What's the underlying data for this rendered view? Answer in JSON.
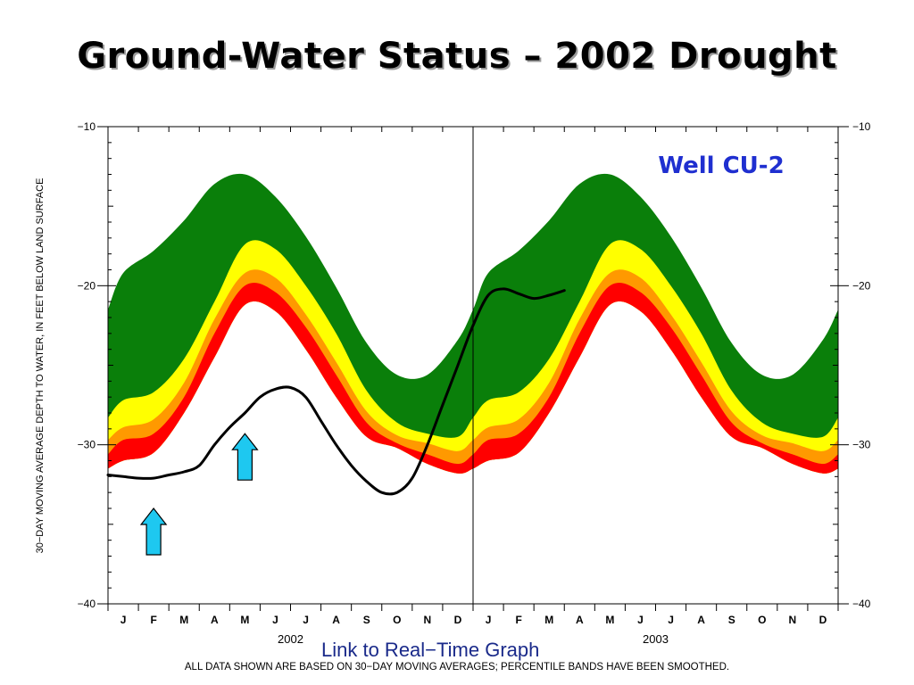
{
  "slide": {
    "title": "Ground-Water Status – 2002 Drought",
    "link_text": "Link to Real−Time Graph",
    "footnote": "ALL DATA SHOWN ARE BASED ON 30−DAY MOVING AVERAGES;  PERCENTILE BANDS HAVE BEEN SMOOTHED."
  },
  "colors": {
    "green": "#0a7f0a",
    "yellow": "#ffff00",
    "orange": "#ff9900",
    "red": "#ff0000",
    "line": "#000000",
    "arrow": "#1ec8f0",
    "well_label": "#1f2fd0"
  },
  "icons": [
    "up-arrow-icon",
    "up-arrow-icon"
  ],
  "chart_data": {
    "type": "area",
    "well_label": "Well CU-2",
    "ylabel": "30−DAY MOVING AVERAGE DEPTH TO WATER, IN FEET BELOW LAND SURFACE",
    "ylim": [
      -40,
      -10
    ],
    "yticks": [
      -10,
      -20,
      -30,
      -40
    ],
    "xlim": [
      0,
      24
    ],
    "months": [
      "J",
      "F",
      "M",
      "A",
      "M",
      "J",
      "J",
      "A",
      "S",
      "O",
      "N",
      "D",
      "J",
      "F",
      "M",
      "A",
      "M",
      "J",
      "J",
      "A",
      "S",
      "O",
      "N",
      "D"
    ],
    "years": [
      "2002",
      "2003"
    ],
    "band_x": [
      0,
      0.5,
      1.5,
      2.5,
      3.5,
      4.5,
      5.5,
      6.5,
      7.5,
      8.5,
      9.5,
      10.5,
      11.5,
      12,
      12.5,
      13.5,
      14.5,
      15.5,
      16.5,
      17.5,
      18.5,
      19.5,
      20.5,
      21.5,
      22.5,
      23.5,
      24
    ],
    "bands": [
      {
        "name": "green",
        "top": [
          -21.5,
          -19.2,
          -17.8,
          -15.9,
          -13.6,
          -13.0,
          -14.4,
          -16.9,
          -20.1,
          -23.6,
          -25.6,
          -25.6,
          -23.4,
          -21.5,
          -19.2,
          -17.8,
          -15.9,
          -13.6,
          -13.0,
          -14.4,
          -16.9,
          -20.1,
          -23.6,
          -25.6,
          -25.6,
          -23.4,
          -21.5
        ]
      },
      {
        "name": "yellow",
        "top": [
          -28.3,
          -27.2,
          -26.7,
          -24.6,
          -21.0,
          -17.4,
          -17.7,
          -20.0,
          -23.0,
          -26.6,
          -28.6,
          -29.3,
          -29.5,
          -28.3,
          -27.2,
          -26.7,
          -24.6,
          -21.0,
          -17.4,
          -17.7,
          -20.0,
          -23.0,
          -26.6,
          -28.6,
          -29.3,
          -29.5,
          -28.3
        ]
      },
      {
        "name": "orange",
        "top": [
          -29.7,
          -28.9,
          -28.4,
          -26.1,
          -22.1,
          -19.2,
          -19.5,
          -21.8,
          -24.8,
          -27.9,
          -29.4,
          -29.9,
          -30.4,
          -29.7,
          -28.9,
          -28.4,
          -26.1,
          -22.1,
          -19.2,
          -19.5,
          -21.8,
          -24.8,
          -27.9,
          -29.4,
          -29.9,
          -30.4,
          -29.7
        ]
      },
      {
        "name": "red",
        "top": [
          -30.6,
          -29.7,
          -29.3,
          -27.0,
          -23.0,
          -20.0,
          -20.4,
          -22.6,
          -25.6,
          -28.6,
          -29.9,
          -30.6,
          -31.2,
          -30.6,
          -29.7,
          -29.3,
          -27.0,
          -23.0,
          -20.0,
          -20.4,
          -22.6,
          -25.6,
          -28.6,
          -29.9,
          -30.6,
          -31.2,
          -30.6
        ],
        "bottom": [
          -31.5,
          -31.0,
          -30.5,
          -28.0,
          -24.5,
          -21.2,
          -21.6,
          -24.0,
          -27.0,
          -29.5,
          -30.2,
          -31.2,
          -31.8,
          -31.5,
          -31.0,
          -30.5,
          -28.0,
          -24.5,
          -21.2,
          -21.6,
          -24.0,
          -27.0,
          -29.5,
          -30.2,
          -31.2,
          -31.8,
          -31.5
        ]
      }
    ],
    "series": [
      {
        "x": [
          0,
          0.5,
          1,
          1.5,
          2,
          2.5,
          3,
          3.5,
          4,
          4.5,
          5,
          5.5,
          6,
          6.5,
          7,
          7.5,
          8,
          8.5,
          9,
          9.5,
          10,
          10.5,
          11,
          11.5,
          12,
          12.5,
          13,
          13.5,
          14,
          14.5,
          15
        ],
        "y": [
          -31.9,
          -32.0,
          -32.1,
          -32.1,
          -31.9,
          -31.7,
          -31.3,
          -30.0,
          -28.9,
          -28.0,
          -27.0,
          -26.5,
          -26.4,
          -27.0,
          -28.5,
          -30.0,
          -31.3,
          -32.3,
          -33.0,
          -33.0,
          -32.1,
          -30.0,
          -27.5,
          -25.0,
          -22.5,
          -20.6,
          -20.2,
          -20.5,
          -20.8,
          -20.6,
          -20.3
        ]
      }
    ],
    "annotations": [
      {
        "type": "up-arrow",
        "x": 1.5,
        "y": -34.0
      },
      {
        "type": "up-arrow",
        "x": 4.5,
        "y": -29.3
      }
    ],
    "grid": false
  }
}
